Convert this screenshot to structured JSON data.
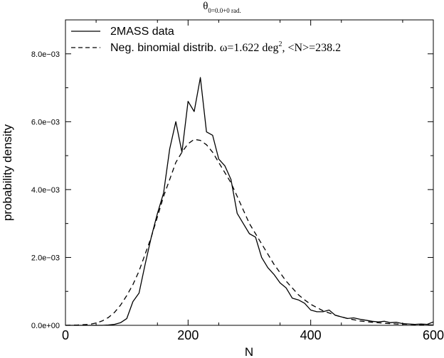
{
  "chart_data": {
    "type": "line",
    "title_symbol": "θ",
    "title_subscript": "0=0.0+0 rad.",
    "xlabel": "N",
    "ylabel": "probability density",
    "xlim": [
      0,
      600
    ],
    "ylim": [
      0,
      0.009
    ],
    "xticks": [
      0,
      200,
      400,
      600
    ],
    "xtick_labels": [
      "0",
      "200",
      "400",
      "600"
    ],
    "yticks": [
      0,
      0.002,
      0.004,
      0.006,
      0.008
    ],
    "ytick_labels": [
      "0.0e+00",
      "2.0e−03",
      "4.0e−03",
      "6.0e−03",
      "8.0e−03"
    ],
    "legend": {
      "position": "top-left",
      "entries": [
        {
          "series": 0,
          "text": "2MASS data"
        },
        {
          "series": 1,
          "text_prefix": "Neg. binomial distrib. ",
          "omega": "ω=1.622 deg",
          "omega_sup": "2",
          "mean": ", <N>=238.2"
        }
      ]
    },
    "series": [
      {
        "name": "2MASS data",
        "style": "solid",
        "color": "#000000",
        "x": [
          0,
          30,
          60,
          70,
          80,
          90,
          100,
          110,
          120,
          130,
          140,
          150,
          160,
          170,
          180,
          190,
          200,
          210,
          220,
          230,
          240,
          250,
          260,
          270,
          280,
          290,
          300,
          310,
          320,
          330,
          340,
          350,
          360,
          370,
          380,
          390,
          400,
          410,
          420,
          430,
          440,
          450,
          460,
          470,
          480,
          490,
          500,
          510,
          520,
          530,
          540,
          550,
          560,
          570,
          580,
          590,
          600
        ],
        "y": [
          0,
          0,
          0,
          1e-05,
          3e-05,
          8e-05,
          0.0002,
          0.0007,
          0.00095,
          0.0018,
          0.0026,
          0.0033,
          0.0039,
          0.0052,
          0.006,
          0.0051,
          0.0066,
          0.0063,
          0.0073,
          0.0057,
          0.0056,
          0.0049,
          0.0047,
          0.0043,
          0.0033,
          0.003,
          0.0027,
          0.0026,
          0.002,
          0.0017,
          0.0015,
          0.00125,
          0.0011,
          0.0008,
          0.00075,
          0.00065,
          0.00045,
          0.0004,
          0.0004,
          0.00045,
          0.0003,
          0.00025,
          0.0002,
          0.00022,
          0.00018,
          0.00015,
          0.00012,
          0.0001,
          0.00012,
          8e-05,
          9e-05,
          5e-05,
          4e-05,
          3e-05,
          4e-05,
          3e-05,
          0.0001
        ]
      },
      {
        "style": "dashed",
        "color": "#000000",
        "x": [
          0,
          20,
          40,
          50,
          60,
          70,
          80,
          90,
          100,
          110,
          120,
          130,
          140,
          150,
          160,
          170,
          180,
          190,
          200,
          210,
          220,
          230,
          240,
          250,
          260,
          270,
          280,
          290,
          300,
          310,
          320,
          330,
          340,
          350,
          360,
          370,
          380,
          390,
          400,
          420,
          440,
          460,
          480,
          500,
          520,
          540,
          560,
          580,
          600
        ],
        "y": [
          0,
          1e-05,
          3e-05,
          7e-05,
          0.00013,
          0.00023,
          0.00038,
          0.0006,
          0.00088,
          0.0012,
          0.0016,
          0.0021,
          0.0026,
          0.0032,
          0.0038,
          0.0043,
          0.0048,
          0.0051,
          0.00535,
          0.00548,
          0.00545,
          0.00532,
          0.0051,
          0.0048,
          0.0045,
          0.0042,
          0.0038,
          0.0034,
          0.003,
          0.0027,
          0.0024,
          0.0021,
          0.0018,
          0.00155,
          0.0013,
          0.0011,
          0.0009,
          0.00075,
          0.00062,
          0.00043,
          0.0003,
          0.0002,
          0.00013,
          9e-05,
          6e-05,
          4e-05,
          3e-05,
          2e-05,
          1e-05
        ]
      }
    ]
  }
}
